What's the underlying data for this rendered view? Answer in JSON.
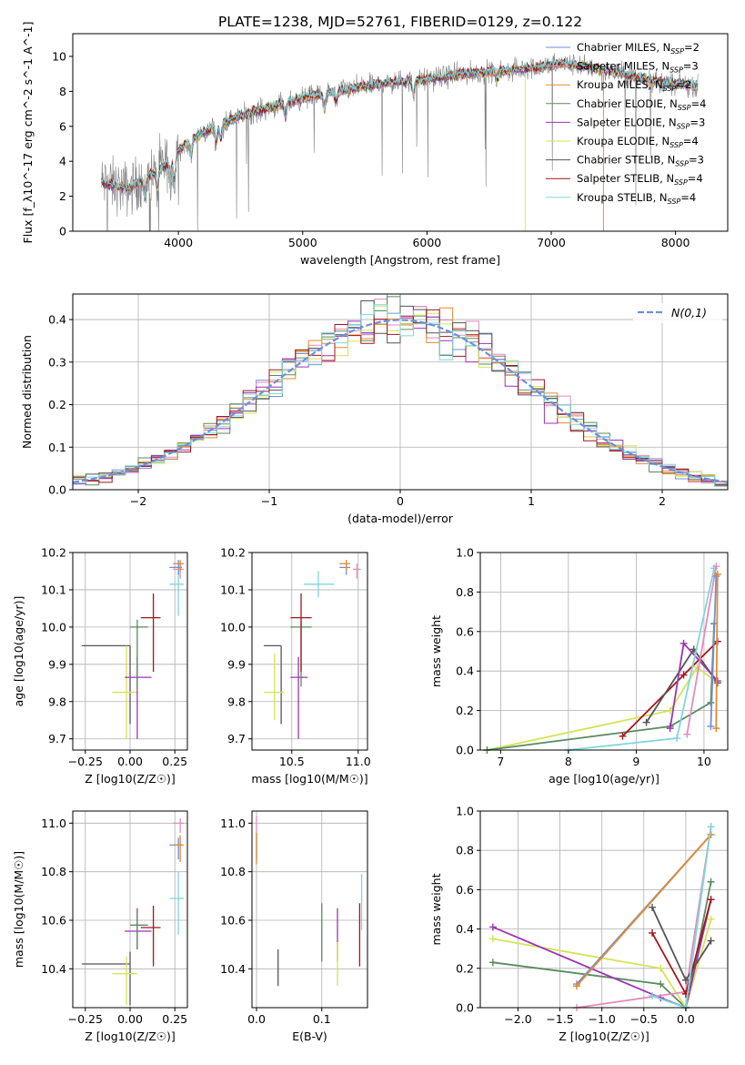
{
  "figure_title": "PLATE=1238, MJD=52761, FIBERID=0129, z=0.122",
  "colors": {
    "Chabrier MILES": "#6f8fd8",
    "Salpeter MILES": "#e48bbd",
    "Kroupa MILES": "#e38a2f",
    "Chabrier ELODIE": "#5a8a5e",
    "Salpeter ELODIE": "#9b35b5",
    "Kroupa ELODIE": "#d4e356",
    "Chabrier STELIB": "#555555",
    "Salpeter STELIB": "#a3161d",
    "Kroupa STELIB": "#7fd6dc",
    "normal": "#6f8fd8",
    "grid": "#b0b0b0"
  },
  "chart_data": [
    {
      "id": "spectrum",
      "type": "line",
      "title": "PLATE=1238, MJD=52761, FIBERID=0129, z=0.122",
      "xlabel": "wavelength [Angstrom, rest frame]",
      "ylabel": "Flux [f_λ10^-17 erg cm^-2 s^-1 A^-1]",
      "xlim": [
        3150,
        8420
      ],
      "ylim": [
        0,
        11.3
      ],
      "xticks": [
        4000,
        5000,
        6000,
        7000,
        8000
      ],
      "yticks": [
        0,
        2,
        4,
        6,
        8,
        10
      ],
      "grid": false,
      "legend_position": "top-right",
      "legend": [
        {
          "label": "Chabrier MILES, N",
          "sub": "SSP",
          "suffix": "=2",
          "series": "Chabrier MILES"
        },
        {
          "label": "Salpeter MILES, N",
          "sub": "SSP",
          "suffix": "=3",
          "series": "Salpeter MILES"
        },
        {
          "label": "Kroupa MILES, N",
          "sub": "SSP",
          "suffix": "=2",
          "series": "Kroupa MILES"
        },
        {
          "label": "Chabrier ELODIE, N",
          "sub": "SSP",
          "suffix": "=4",
          "series": "Chabrier ELODIE"
        },
        {
          "label": "Salpeter ELODIE, N",
          "sub": "SSP",
          "suffix": "=3",
          "series": "Salpeter ELODIE"
        },
        {
          "label": "Kroupa ELODIE, N",
          "sub": "SSP",
          "suffix": "=4",
          "series": "Kroupa ELODIE"
        },
        {
          "label": "Chabrier STELIB, N",
          "sub": "SSP",
          "suffix": "=3",
          "series": "Chabrier STELIB"
        },
        {
          "label": "Salpeter STELIB, N",
          "sub": "SSP",
          "suffix": "=4",
          "series": "Salpeter STELIB"
        },
        {
          "label": "Kroupa STELIB, N",
          "sub": "SSP",
          "suffix": "=4",
          "series": "Kroupa STELIB"
        }
      ],
      "continuum": {
        "x": [
          3380,
          3600,
          3700,
          3800,
          3900,
          4000,
          4100,
          4200,
          4300,
          4500,
          4700,
          4900,
          5100,
          5300,
          5500,
          5700,
          5900,
          6100,
          6300,
          6500,
          6700,
          6900,
          7100,
          7300,
          7500,
          7700,
          7900,
          8180
        ],
        "y": [
          2.8,
          2.4,
          2.9,
          3.3,
          3.8,
          4.6,
          5.2,
          5.6,
          6.0,
          6.6,
          7.0,
          7.4,
          7.8,
          8.0,
          8.3,
          8.5,
          8.6,
          8.8,
          9.0,
          9.1,
          9.2,
          9.4,
          9.6,
          9.4,
          9.1,
          8.8,
          8.5,
          8.3
        ]
      },
      "observed_color": "#808080"
    },
    {
      "id": "residuals",
      "type": "histogram",
      "xlabel": "(data-model)/error",
      "ylabel": "Normed distribution",
      "xlim": [
        -2.5,
        2.5
      ],
      "ylim": [
        0,
        0.46
      ],
      "xticks": [
        -2,
        -1,
        0,
        1,
        2
      ],
      "yticks": [
        0.0,
        0.1,
        0.2,
        0.3,
        0.4
      ],
      "grid": true,
      "legend_position": "top-right",
      "legend_label": "N(0,1)",
      "bin_width": 0.1
    },
    {
      "id": "age-vs-Z",
      "type": "scatter",
      "xlabel": "Z [log10(Z/Z☉)]",
      "ylabel": "age  [log10(age/yr)]",
      "xlim": [
        -0.32,
        0.32
      ],
      "ylim": [
        9.67,
        10.2
      ],
      "xticks": [
        -0.25,
        0.0,
        0.25
      ],
      "yticks": [
        9.7,
        9.8,
        9.9,
        10.0,
        10.1,
        10.2
      ],
      "grid": true,
      "points": [
        {
          "s": "Chabrier STELIB",
          "x": 0.0,
          "y": 9.95,
          "xe": [
            -0.27,
            0.0
          ],
          "ye": [
            9.74,
            9.95
          ]
        },
        {
          "s": "Kroupa ELODIE",
          "x": -0.02,
          "y": 9.825,
          "xe": [
            -0.1,
            0.04
          ],
          "ye": [
            9.7,
            9.95
          ]
        },
        {
          "s": "Salpeter ELODIE",
          "x": 0.04,
          "y": 9.865,
          "xe": [
            -0.03,
            0.12
          ],
          "ye": [
            9.7,
            9.92
          ]
        },
        {
          "s": "Chabrier ELODIE",
          "x": 0.04,
          "y": 10.0,
          "xe": [
            0.0,
            0.1
          ],
          "ye": [
            9.83,
            10.02
          ]
        },
        {
          "s": "Salpeter STELIB",
          "x": 0.13,
          "y": 10.025,
          "xe": [
            0.06,
            0.17
          ],
          "ye": [
            9.88,
            10.09
          ]
        },
        {
          "s": "Kroupa STELIB",
          "x": 0.27,
          "y": 10.115,
          "xe": [
            0.22,
            0.3
          ],
          "ye": [
            10.03,
            10.17
          ]
        },
        {
          "s": "Chabrier MILES",
          "x": 0.27,
          "y": 10.16,
          "xe": [
            0.22,
            0.29
          ],
          "ye": [
            10.14,
            10.18
          ]
        },
        {
          "s": "Salpeter MILES",
          "x": 0.28,
          "y": 10.155,
          "xe": [
            0.24,
            0.3
          ],
          "ye": [
            10.13,
            10.17
          ]
        },
        {
          "s": "Kroupa MILES",
          "x": 0.28,
          "y": 10.17,
          "xe": [
            0.24,
            0.3
          ],
          "ye": [
            10.15,
            10.18
          ]
        }
      ]
    },
    {
      "id": "age-vs-mass",
      "type": "scatter",
      "xlabel": "mass [log10(M/M☉)]",
      "ylabel": "",
      "xlim": [
        10.2,
        11.07
      ],
      "ylim": [
        9.67,
        10.2
      ],
      "xticks": [
        10.5,
        11.0
      ],
      "yticks": [
        9.7,
        9.8,
        9.9,
        10.0,
        10.1,
        10.2
      ],
      "grid": true,
      "points": [
        {
          "s": "Chabrier STELIB",
          "x": 10.42,
          "y": 9.95,
          "xe": [
            10.29,
            10.42
          ],
          "ye": [
            9.74,
            9.95
          ]
        },
        {
          "s": "Kroupa ELODIE",
          "x": 10.37,
          "y": 9.825,
          "xe": [
            10.29,
            10.44
          ],
          "ye": [
            9.75,
            9.93
          ]
        },
        {
          "s": "Salpeter ELODIE",
          "x": 10.55,
          "y": 9.865,
          "xe": [
            10.49,
            10.62
          ],
          "ye": [
            9.7,
            9.92
          ]
        },
        {
          "s": "Chabrier ELODIE",
          "x": 10.57,
          "y": 10.0,
          "xe": [
            10.49,
            10.65
          ],
          "ye": [
            9.84,
            10.02
          ]
        },
        {
          "s": "Salpeter STELIB",
          "x": 10.57,
          "y": 10.025,
          "xe": [
            10.49,
            10.65
          ],
          "ye": [
            9.88,
            10.09
          ]
        },
        {
          "s": "Kroupa STELIB",
          "x": 10.7,
          "y": 10.115,
          "xe": [
            10.59,
            10.82
          ],
          "ye": [
            10.08,
            10.15
          ]
        },
        {
          "s": "Chabrier MILES",
          "x": 10.91,
          "y": 10.16,
          "xe": [
            10.86,
            10.94
          ],
          "ye": [
            10.14,
            10.18
          ]
        },
        {
          "s": "Salpeter MILES",
          "x": 10.99,
          "y": 10.155,
          "xe": [
            10.96,
            11.02
          ],
          "ye": [
            10.13,
            10.17
          ]
        },
        {
          "s": "Kroupa MILES",
          "x": 10.91,
          "y": 10.17,
          "xe": [
            10.86,
            10.94
          ],
          "ye": [
            10.15,
            10.18
          ]
        }
      ]
    },
    {
      "id": "weight-vs-age",
      "type": "line",
      "xlabel": "age  [log10(age/yr)]",
      "ylabel": "mass weight",
      "xlim": [
        6.7,
        10.35
      ],
      "ylim": [
        0,
        1.0
      ],
      "xticks": [
        7,
        8,
        9,
        10
      ],
      "yticks": [
        0.0,
        0.2,
        0.4,
        0.6,
        0.8,
        1.0
      ],
      "grid": true,
      "series": [
        {
          "s": "Kroupa ELODIE",
          "x": [
            6.8,
            9.5,
            9.9,
            10.2
          ],
          "y": [
            0.0,
            0.2,
            0.42,
            0.34
          ]
        },
        {
          "s": "Chabrier ELODIE",
          "x": [
            6.8,
            9.5,
            10.1,
            10.15
          ],
          "y": [
            0.0,
            0.12,
            0.24,
            0.64
          ]
        },
        {
          "s": "Salpeter STELIB",
          "x": [
            8.8,
            9.7,
            10.2
          ],
          "y": [
            0.07,
            0.38,
            0.55
          ]
        },
        {
          "s": "Chabrier STELIB",
          "x": [
            9.15,
            9.85,
            10.2
          ],
          "y": [
            0.14,
            0.51,
            0.34
          ]
        },
        {
          "s": "Salpeter ELODIE",
          "x": [
            9.5,
            9.7,
            10.2
          ],
          "y": [
            0.11,
            0.54,
            0.35
          ]
        },
        {
          "s": "Kroupa STELIB",
          "x": [
            8.0,
            9.6,
            10.15
          ],
          "y": [
            0.0,
            0.06,
            0.92
          ]
        },
        {
          "s": "Salpeter MILES",
          "x": [
            9.75,
            10.18
          ],
          "y": [
            0.08,
            0.93
          ]
        },
        {
          "s": "Chabrier MILES",
          "x": [
            10.1,
            10.18
          ],
          "y": [
            0.12,
            0.88
          ]
        },
        {
          "s": "Kroupa MILES",
          "x": [
            10.18,
            10.2
          ],
          "y": [
            0.11,
            0.89
          ]
        }
      ]
    },
    {
      "id": "mass-vs-Z",
      "type": "scatter",
      "xlabel": "Z [log10(Z/Z☉)]",
      "ylabel": "mass [log10(M/M☉)]",
      "xlim": [
        -0.32,
        0.32
      ],
      "ylim": [
        10.24,
        11.05
      ],
      "xticks": [
        -0.25,
        0.0,
        0.25
      ],
      "yticks": [
        10.4,
        10.6,
        10.8,
        11.0
      ],
      "grid": true,
      "points": [
        {
          "s": "Chabrier STELIB",
          "x": 0.0,
          "y": 10.42,
          "xe": [
            -0.27,
            0.0
          ],
          "ye": [
            10.25,
            10.47
          ]
        },
        {
          "s": "Kroupa ELODIE",
          "x": -0.02,
          "y": 10.38,
          "xe": [
            -0.1,
            0.04
          ],
          "ye": [
            10.25,
            10.45
          ]
        },
        {
          "s": "Salpeter ELODIE",
          "x": 0.04,
          "y": 10.555,
          "xe": [
            -0.03,
            0.12
          ],
          "ye": [
            10.48,
            10.65
          ]
        },
        {
          "s": "Chabrier ELODIE",
          "x": 0.04,
          "y": 10.58,
          "xe": [
            0.0,
            0.1
          ],
          "ye": [
            10.48,
            10.63
          ]
        },
        {
          "s": "Salpeter STELIB",
          "x": 0.13,
          "y": 10.57,
          "xe": [
            0.06,
            0.17
          ],
          "ye": [
            10.41,
            10.66
          ]
        },
        {
          "s": "Kroupa STELIB",
          "x": 0.27,
          "y": 10.69,
          "xe": [
            0.22,
            0.3
          ],
          "ye": [
            10.54,
            10.8
          ]
        },
        {
          "s": "Chabrier MILES",
          "x": 0.27,
          "y": 10.91,
          "xe": [
            0.22,
            0.29
          ],
          "ye": [
            10.85,
            10.94
          ]
        },
        {
          "s": "Salpeter MILES",
          "x": 0.28,
          "y": 11.0,
          "xe": [
            0.24,
            0.3
          ],
          "ye": [
            10.96,
            11.02
          ]
        },
        {
          "s": "Kroupa MILES",
          "x": 0.28,
          "y": 10.91,
          "xe": [
            0.24,
            0.3
          ],
          "ye": [
            10.84,
            10.95
          ]
        }
      ]
    },
    {
      "id": "mass-vs-EBV",
      "type": "scatter",
      "xlabel": "E(B-V)",
      "ylabel": "",
      "xlim": [
        -0.007,
        0.17
      ],
      "ylim": [
        10.24,
        11.05
      ],
      "xticks": [
        0.0,
        0.1
      ],
      "yticks": [
        10.4,
        10.6,
        10.8,
        11.0
      ],
      "grid": true,
      "points": [
        {
          "s": "Chabrier STELIB",
          "x": 0.033,
          "y": 10.42,
          "ye": [
            10.33,
            10.48
          ]
        },
        {
          "s": "Chabrier ELODIE",
          "x": 0.1,
          "y": 10.58,
          "ye": [
            10.43,
            10.67
          ]
        },
        {
          "s": "Salpeter ELODIE",
          "x": 0.124,
          "y": 10.555,
          "ye": [
            10.43,
            10.65
          ]
        },
        {
          "s": "Kroupa ELODIE",
          "x": 0.124,
          "y": 10.38,
          "ye": [
            10.33,
            10.51
          ]
        },
        {
          "s": "Salpeter STELIB",
          "x": 0.158,
          "y": 10.57,
          "ye": [
            10.41,
            10.67
          ]
        },
        {
          "s": "Kroupa STELIB",
          "x": 0.161,
          "y": 10.69,
          "ye": [
            10.56,
            10.79
          ]
        },
        {
          "s": "Chabrier MILES",
          "x": 0.0,
          "y": 10.91,
          "ye": [
            10.85,
            10.95
          ]
        },
        {
          "s": "Salpeter MILES",
          "x": 0.0,
          "y": 11.0,
          "ye": [
            10.95,
            11.03
          ]
        },
        {
          "s": "Kroupa MILES",
          "x": 0.0,
          "y": 10.91,
          "ye": [
            10.83,
            10.96
          ]
        }
      ]
    },
    {
      "id": "weight-vs-Z",
      "type": "line",
      "xlabel": "Z [log10(Z/Z☉)]",
      "ylabel": "mass weight",
      "xlim": [
        -2.45,
        0.5
      ],
      "ylim": [
        0,
        1.0
      ],
      "xticks": [
        -2.0,
        -1.5,
        -1.0,
        -0.5,
        0.0
      ],
      "yticks": [
        0.0,
        0.2,
        0.4,
        0.6,
        0.8,
        1.0
      ],
      "grid": true,
      "series": [
        {
          "s": "Chabrier ELODIE",
          "x": [
            -2.3,
            -0.3,
            0.0,
            0.3
          ],
          "y": [
            0.23,
            0.12,
            0.0,
            0.64
          ]
        },
        {
          "s": "Kroupa ELODIE",
          "x": [
            -2.3,
            -0.3,
            0.0,
            0.3
          ],
          "y": [
            0.35,
            0.2,
            0.0,
            0.45
          ]
        },
        {
          "s": "Salpeter ELODIE",
          "x": [
            -2.3,
            -0.3,
            0.0,
            0.3
          ],
          "y": [
            0.41,
            0.05,
            0.0,
            0.55
          ]
        },
        {
          "s": "Salpeter MILES",
          "x": [
            -1.3,
            0.0,
            0.3
          ],
          "y": [
            0.0,
            0.08,
            0.92
          ]
        },
        {
          "s": "Chabrier MILES",
          "x": [
            -1.3,
            0.3
          ],
          "y": [
            0.12,
            0.88
          ]
        },
        {
          "s": "Kroupa MILES",
          "x": [
            -1.3,
            0.3
          ],
          "y": [
            0.11,
            0.88
          ]
        },
        {
          "s": "Chabrier STELIB",
          "x": [
            -0.4,
            0.0,
            0.3
          ],
          "y": [
            0.51,
            0.14,
            0.34
          ]
        },
        {
          "s": "Salpeter STELIB",
          "x": [
            -0.4,
            0.0,
            0.3
          ],
          "y": [
            0.38,
            0.07,
            0.55
          ]
        },
        {
          "s": "Kroupa STELIB",
          "x": [
            -0.4,
            0.0,
            0.3
          ],
          "y": [
            0.06,
            0.0,
            0.92
          ]
        }
      ]
    }
  ]
}
